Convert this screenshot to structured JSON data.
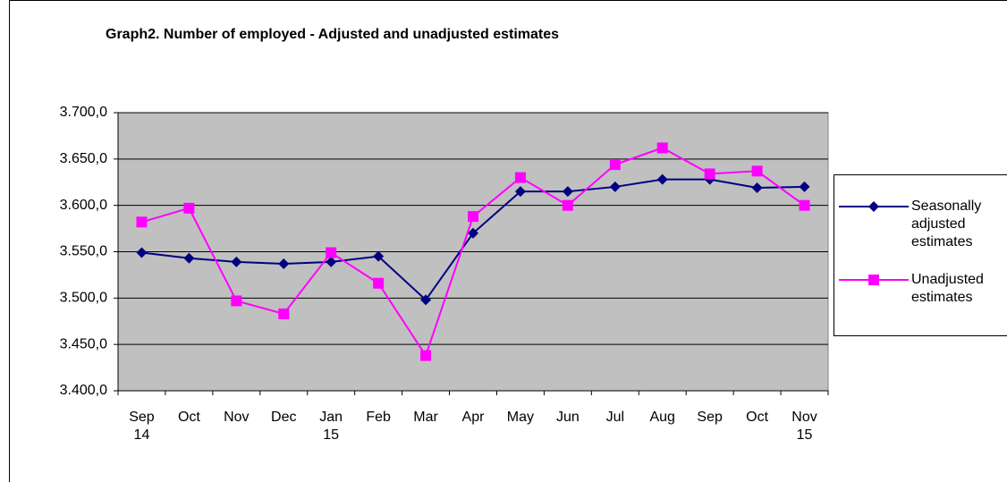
{
  "chart_data": {
    "type": "line",
    "title": "Graph2. Number of employed - Adjusted and unadjusted estimates",
    "categories": [
      "Sep 14",
      "Oct",
      "Nov",
      "Dec",
      "Jan 15",
      "Feb",
      "Mar",
      "Apr",
      "May",
      "Jun",
      "Jul",
      "Aug",
      "Sep",
      "Oct",
      "Nov 15"
    ],
    "series": [
      {
        "name": "Seasonally adjusted estimates",
        "color": "#000080",
        "marker": "diamond",
        "values": [
          3549,
          3543,
          3539,
          3537,
          3539,
          3545,
          3498,
          3570,
          3615,
          3615,
          3620,
          3628,
          3628,
          3619,
          3620
        ]
      },
      {
        "name": "Unadjusted estimates",
        "color": "#ff00ff",
        "marker": "square",
        "values": [
          3582,
          3597,
          3497,
          3483,
          3549,
          3516,
          3438,
          3588,
          3630,
          3600,
          3644,
          3662,
          3634,
          3637,
          3600
        ]
      }
    ],
    "ylim": [
      3400,
      3700
    ],
    "yticks": [
      {
        "value": 3400,
        "label": "3.400,0"
      },
      {
        "value": 3450,
        "label": "3.450,0"
      },
      {
        "value": 3500,
        "label": "3.500,0"
      },
      {
        "value": 3550,
        "label": "3.550,0"
      },
      {
        "value": 3600,
        "label": "3.600,0"
      },
      {
        "value": 3650,
        "label": "3.650,0"
      },
      {
        "value": 3700,
        "label": "3.700,0"
      }
    ],
    "grid": true,
    "legend": "right"
  }
}
